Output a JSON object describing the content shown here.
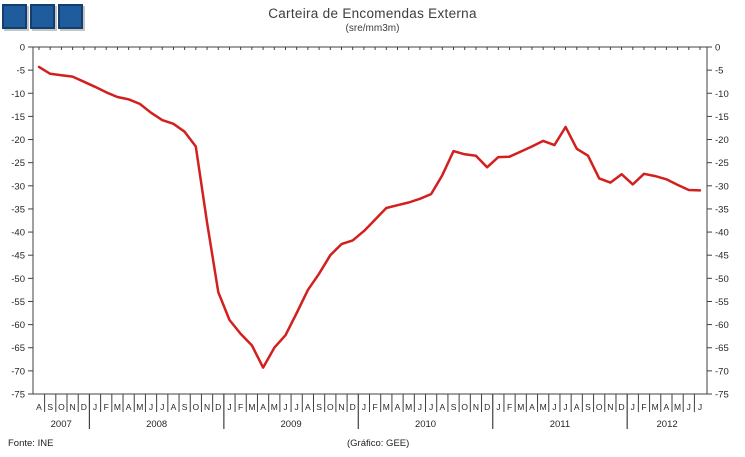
{
  "header": {
    "title": "Carteira de Encomendas Externa",
    "subtitle": "(sre/mm3m)"
  },
  "logo": {
    "squares": 3,
    "fill_color": "#1e5c9e",
    "border_color": "#123f6e"
  },
  "footer": {
    "source": "Fonte: INE",
    "credit": "(Gráfico: GEE)"
  },
  "chart_data": {
    "type": "line",
    "title": "Carteira de Encomendas Externa",
    "subtitle": "(sre/mm3m)",
    "line_color": "#d2201e",
    "axis_color": "#404040",
    "text_color": "#262626",
    "grid": false,
    "legend": "none",
    "ylim": [
      0,
      -75
    ],
    "ytick_values": [
      0,
      -5,
      -10,
      -15,
      -20,
      -25,
      -30,
      -35,
      -40,
      -45,
      -50,
      -55,
      -60,
      -65,
      -70,
      -75
    ],
    "y_axis_sides": "both",
    "x_labels": [
      "A",
      "S",
      "O",
      "N",
      "D",
      "J",
      "F",
      "M",
      "A",
      "M",
      "J",
      "J",
      "A",
      "S",
      "O",
      "N",
      "D",
      "J",
      "F",
      "M",
      "A",
      "M",
      "J",
      "J",
      "A",
      "S",
      "O",
      "N",
      "D",
      "J",
      "F",
      "M",
      "A",
      "M",
      "J",
      "J",
      "A",
      "S",
      "O",
      "N",
      "D",
      "J",
      "F",
      "M",
      "A",
      "M",
      "J",
      "J",
      "A",
      "S",
      "O",
      "N",
      "D",
      "J",
      "F",
      "M",
      "A",
      "M",
      "J",
      "J"
    ],
    "year_groups": [
      {
        "label": "2007",
        "months": 5
      },
      {
        "label": "2008",
        "months": 12
      },
      {
        "label": "2009",
        "months": 12
      },
      {
        "label": "2010",
        "months": 12
      },
      {
        "label": "2011",
        "months": 12
      },
      {
        "label": "2012",
        "months": 7
      }
    ],
    "values": [
      -4.3,
      -5.8,
      -6.1,
      -6.4,
      -7.5,
      -8.6,
      -9.8,
      -10.8,
      -11.3,
      -12.3,
      -14.2,
      -15.8,
      -16.6,
      -18.3,
      -21.5,
      -38,
      -53,
      -59,
      -62,
      -64.5,
      -69.3,
      -65,
      -62.3,
      -57.5,
      -52.5,
      -49,
      -45,
      -42.6,
      -41.8,
      -39.8,
      -37.3,
      -34.8,
      -34.2,
      -33.6,
      -32.8,
      -31.8,
      -27.7,
      -22.5,
      -23.2,
      -23.5,
      -26,
      -23.8,
      -23.7,
      -22.6,
      -21.5,
      -20.3,
      -21.2,
      -17.3,
      -22,
      -23.5,
      -28.4,
      -29.3,
      -27.5,
      -29.7,
      -27.4,
      -27.9,
      -28.6,
      -29.8,
      -30.9,
      -31
    ]
  }
}
